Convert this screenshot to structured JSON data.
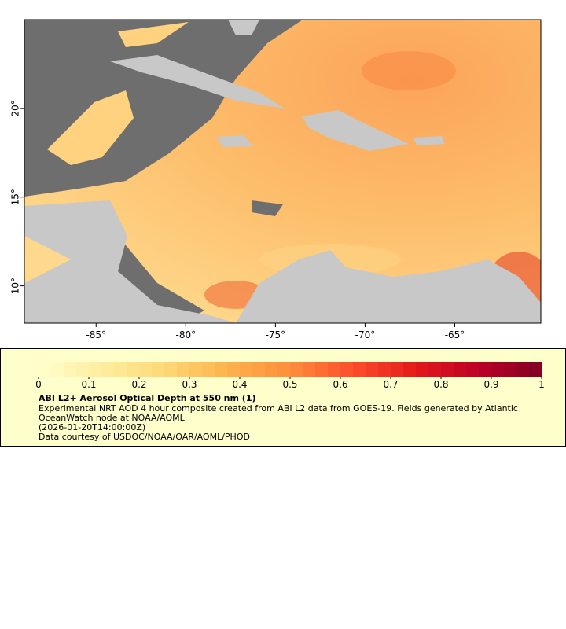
{
  "map": {
    "xlim": [
      -89,
      -60.2
    ],
    "ylim": [
      7.9,
      25
    ],
    "xticks": [
      {
        "value": -85,
        "label": "-85°"
      },
      {
        "value": -80,
        "label": "-80°"
      },
      {
        "value": -75,
        "label": "-75°"
      },
      {
        "value": -70,
        "label": "-70°"
      },
      {
        "value": -65,
        "label": "-65°"
      }
    ],
    "yticks": [
      {
        "value": 10,
        "label": "10°"
      },
      {
        "value": 15,
        "label": "15°"
      },
      {
        "value": 20,
        "label": "20°"
      }
    ]
  },
  "colorbar": {
    "lim": [
      0,
      1
    ],
    "ticks": [
      0,
      0.1,
      0.2,
      0.3,
      0.4,
      0.5,
      0.6,
      0.7,
      0.8,
      0.9,
      1
    ],
    "colors": [
      "#ffffcc",
      "#ffeda0",
      "#fed976",
      "#feb24c",
      "#fd8d3c",
      "#fc4e2a",
      "#e31a1c",
      "#bd0026",
      "#800026"
    ]
  },
  "legend": {
    "title": "ABI L2+ Aerosol Optical Depth at 550 nm (1)",
    "description": "Experimental NRT AOD 4 hour composite created from ABI L2 data from GOES-19. Fields generated by Atlantic OceanWatch node at NOAA/AOML",
    "time": "(2026-01-20T14:00:00Z)",
    "credit": "Data courtesy of USDOC/NOAA/OAR/AOML/PHOD"
  }
}
